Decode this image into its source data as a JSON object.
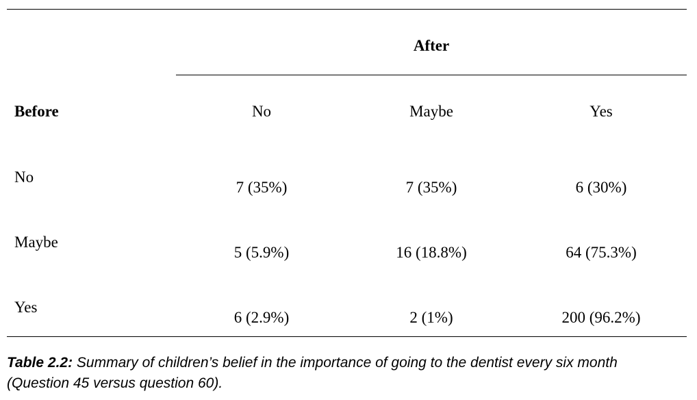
{
  "table": {
    "group_header": "After",
    "row_header_label": "Before",
    "columns": [
      "No",
      "Maybe",
      "Yes"
    ],
    "rows": [
      {
        "label": "No",
        "cells": [
          "7 (35%)",
          "7 (35%)",
          "6 (30%)"
        ]
      },
      {
        "label": "Maybe",
        "cells": [
          "5 (5.9%)",
          "16 (18.8%)",
          "64 (75.3%)"
        ]
      },
      {
        "label": "Yes",
        "cells": [
          "6 (2.9%)",
          "2 (1%)",
          "200 (96.2%)"
        ]
      }
    ]
  },
  "caption": {
    "label": "Table 2.2:",
    "line1": " Summary of children’s belief in the importance of going to the dentist every six month",
    "line2": "(Question 45 versus question 60)."
  }
}
